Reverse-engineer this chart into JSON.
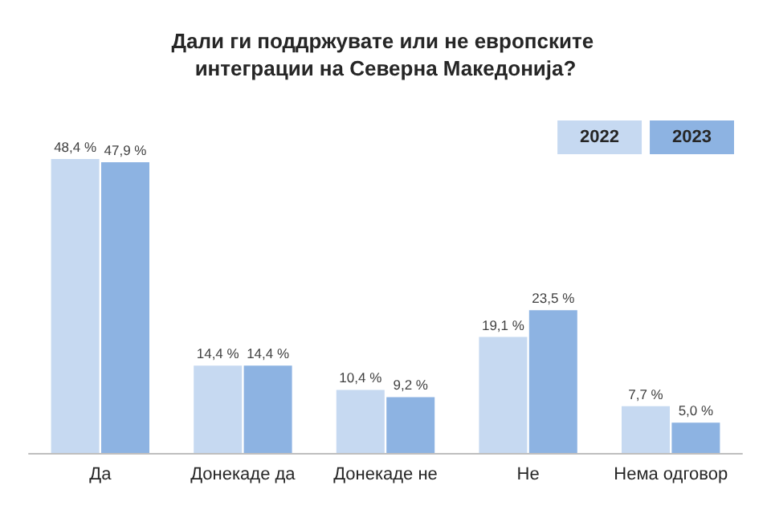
{
  "chart_data": {
    "type": "bar",
    "title": "Дали ги поддржувате или не европските интеграции на Северна Македонија?",
    "categories": [
      "Да",
      "Донекаде да",
      "Донекаде не",
      "Не",
      "Нема одговор"
    ],
    "series": [
      {
        "name": "2022",
        "color": "#c6d9f1",
        "values": [
          48.4,
          14.4,
          10.4,
          19.1,
          7.7
        ],
        "value_labels": [
          "48,4 %",
          "14,4 %",
          "10,4 %",
          "19,1 %",
          "7,7 %"
        ]
      },
      {
        "name": "2023",
        "color": "#8db3e2",
        "values": [
          47.9,
          14.4,
          9.2,
          23.5,
          5.0
        ],
        "value_labels": [
          "47,9 %",
          "14,4 %",
          "9,2 %",
          "23,5 %",
          "5,0 %"
        ]
      }
    ],
    "legend": "top right",
    "grid": false
  }
}
